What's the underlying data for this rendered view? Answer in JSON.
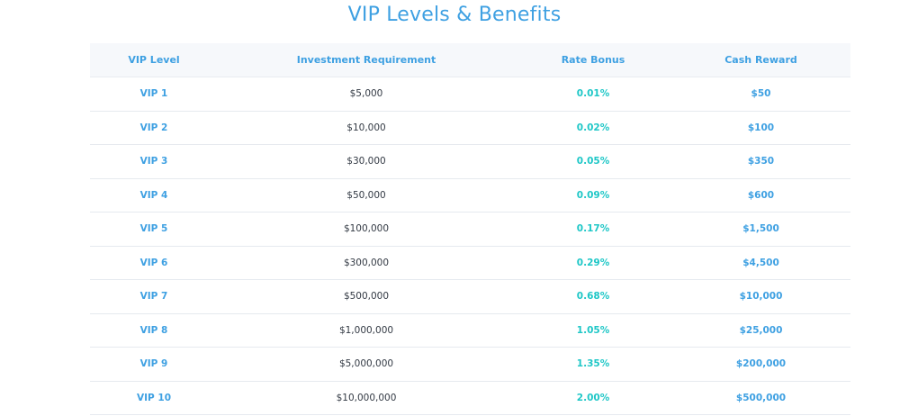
{
  "title": "VIP Levels & Benefits",
  "colors": {
    "accent": "#3ea0e2",
    "rate": "#1fc7c7",
    "text": "#333a44",
    "header_bg": "#f6f8fb"
  },
  "table": {
    "headers": [
      "VIP Level",
      "Investment Requirement",
      "Rate Bonus",
      "Cash Reward"
    ],
    "rows": [
      {
        "level": "VIP 1",
        "investment": "$5,000",
        "rate": "0.01%",
        "cash": "$50"
      },
      {
        "level": "VIP 2",
        "investment": "$10,000",
        "rate": "0.02%",
        "cash": "$100"
      },
      {
        "level": "VIP 3",
        "investment": "$30,000",
        "rate": "0.05%",
        "cash": "$350"
      },
      {
        "level": "VIP 4",
        "investment": "$50,000",
        "rate": "0.09%",
        "cash": "$600"
      },
      {
        "level": "VIP 5",
        "investment": "$100,000",
        "rate": "0.17%",
        "cash": "$1,500"
      },
      {
        "level": "VIP 6",
        "investment": "$300,000",
        "rate": "0.29%",
        "cash": "$4,500"
      },
      {
        "level": "VIP 7",
        "investment": "$500,000",
        "rate": "0.68%",
        "cash": "$10,000"
      },
      {
        "level": "VIP 8",
        "investment": "$1,000,000",
        "rate": "1.05%",
        "cash": "$25,000"
      },
      {
        "level": "VIP 9",
        "investment": "$5,000,000",
        "rate": "1.35%",
        "cash": "$200,000"
      },
      {
        "level": "VIP 10",
        "investment": "$10,000,000",
        "rate": "2.00%",
        "cash": "$500,000"
      }
    ]
  }
}
